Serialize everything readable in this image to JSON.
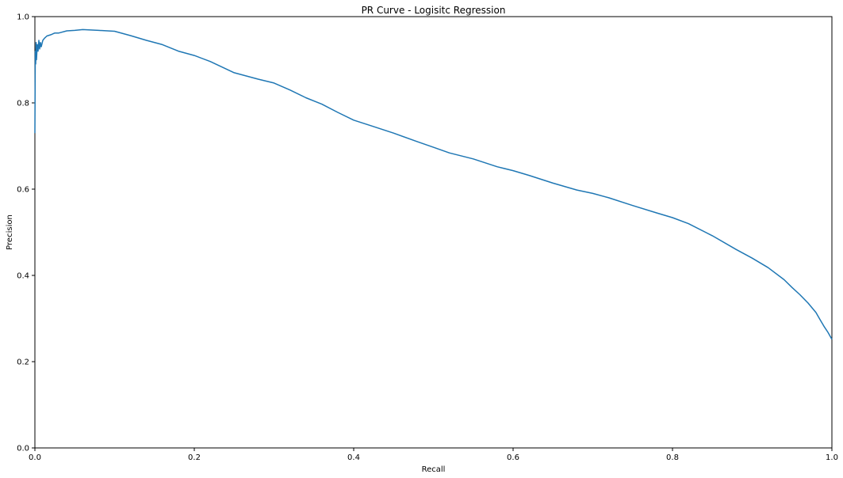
{
  "chart_data": {
    "type": "line",
    "title": "PR Curve - Logisitc Regression",
    "xlabel": "Recall",
    "ylabel": "Precision",
    "xlim": [
      0.0,
      1.0
    ],
    "ylim": [
      0.0,
      1.0
    ],
    "xticks": [
      0.0,
      0.2,
      0.4,
      0.6,
      0.8,
      1.0
    ],
    "yticks": [
      0.0,
      0.2,
      0.4,
      0.6,
      0.8,
      1.0
    ],
    "xtick_labels": [
      "0.0",
      "0.2",
      "0.4",
      "0.6",
      "0.8",
      "1.0"
    ],
    "ytick_labels": [
      "0.0",
      "0.2",
      "0.4",
      "0.6",
      "0.8",
      "1.0"
    ],
    "grid": false,
    "line_color": "#1f77b4",
    "series": [
      {
        "x": [
          0.0,
          0.0005,
          0.001,
          0.0015,
          0.002,
          0.003,
          0.004,
          0.005,
          0.006,
          0.007,
          0.008,
          0.01,
          0.012,
          0.015,
          0.02,
          0.025,
          0.03,
          0.04,
          0.05,
          0.06,
          0.07,
          0.08,
          0.1,
          0.12,
          0.14,
          0.16,
          0.18,
          0.2,
          0.22,
          0.25,
          0.28,
          0.3,
          0.32,
          0.34,
          0.36,
          0.38,
          0.4,
          0.42,
          0.45,
          0.48,
          0.5,
          0.52,
          0.55,
          0.58,
          0.6,
          0.62,
          0.65,
          0.68,
          0.7,
          0.72,
          0.75,
          0.78,
          0.8,
          0.82,
          0.85,
          0.88,
          0.9,
          0.92,
          0.94,
          0.95,
          0.96,
          0.97,
          0.98,
          0.985,
          0.99,
          0.995,
          1.0
        ],
        "y": [
          0.73,
          0.92,
          0.89,
          0.94,
          0.9,
          0.935,
          0.92,
          0.945,
          0.925,
          0.94,
          0.93,
          0.945,
          0.95,
          0.955,
          0.958,
          0.962,
          0.962,
          0.967,
          0.968,
          0.97,
          0.969,
          0.968,
          0.966,
          0.956,
          0.945,
          0.935,
          0.92,
          0.91,
          0.896,
          0.87,
          0.855,
          0.846,
          0.83,
          0.812,
          0.797,
          0.778,
          0.76,
          0.748,
          0.73,
          0.71,
          0.697,
          0.684,
          0.67,
          0.652,
          0.643,
          0.632,
          0.614,
          0.598,
          0.59,
          0.58,
          0.562,
          0.545,
          0.534,
          0.52,
          0.492,
          0.46,
          0.44,
          0.418,
          0.39,
          0.372,
          0.355,
          0.336,
          0.314,
          0.298,
          0.282,
          0.268,
          0.252
        ]
      }
    ]
  }
}
